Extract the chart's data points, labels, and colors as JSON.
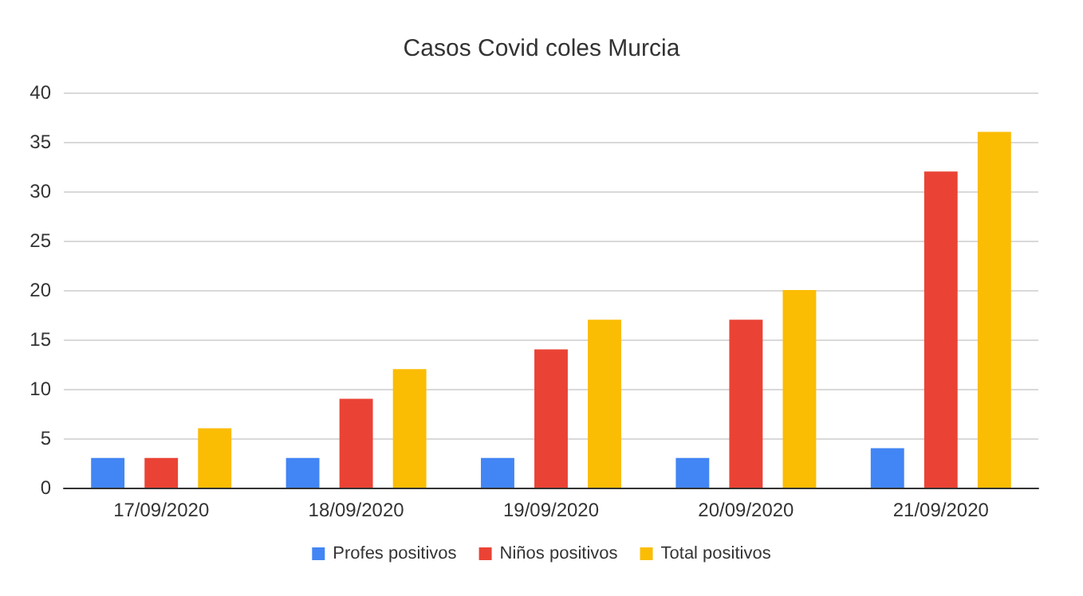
{
  "chart_data": {
    "type": "bar",
    "title": "Casos Covid coles Murcia",
    "categories": [
      "17/09/2020",
      "18/09/2020",
      "19/09/2020",
      "20/09/2020",
      "21/09/2020"
    ],
    "series": [
      {
        "name": "Profes positivos",
        "color": "#4285f4",
        "values": [
          3,
          3,
          3,
          3,
          4
        ]
      },
      {
        "name": "Niños positivos",
        "color": "#ea4335",
        "values": [
          3,
          9,
          14,
          17,
          32
        ]
      },
      {
        "name": "Total positivos",
        "color": "#fbbc04",
        "values": [
          6,
          12,
          17,
          20,
          36
        ]
      }
    ],
    "ylim": [
      0,
      40
    ],
    "yticks": [
      0,
      5,
      10,
      15,
      20,
      25,
      30,
      35,
      40
    ],
    "grid": "y",
    "legend": "bottom"
  }
}
